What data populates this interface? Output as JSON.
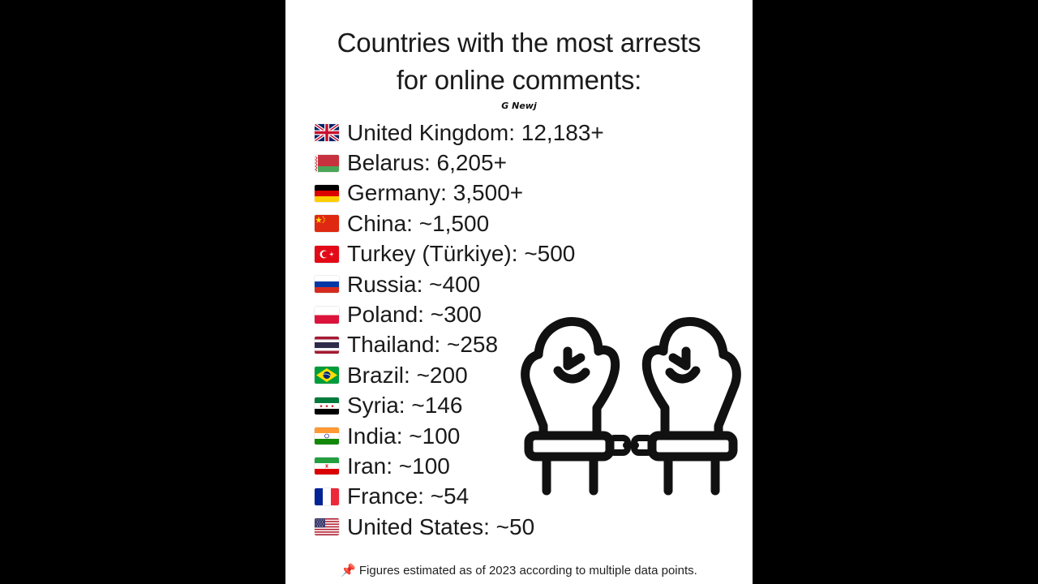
{
  "title_lines": [
    "Countries with the most arrests",
    "for online comments:"
  ],
  "credit": "G Newj",
  "countries": [
    {
      "flag": "gb-flag-icon",
      "text": "United Kingdom: 12,183+"
    },
    {
      "flag": "by-flag-icon",
      "text": "Belarus: 6,205+"
    },
    {
      "flag": "de-flag-icon",
      "text": "Germany: 3,500+"
    },
    {
      "flag": "cn-flag-icon",
      "text": "China: ~1,500"
    },
    {
      "flag": "tr-flag-icon",
      "text": "Turkey (Türkiye): ~500"
    },
    {
      "flag": "ru-flag-icon",
      "text": "Russia: ~400"
    },
    {
      "flag": "pl-flag-icon",
      "text": "Poland: ~300"
    },
    {
      "flag": "th-flag-icon",
      "text": "Thailand: ~258"
    },
    {
      "flag": "br-flag-icon",
      "text": "Brazil: ~200"
    },
    {
      "flag": "sy-flag-icon",
      "text": "Syria: ~146"
    },
    {
      "flag": "in-flag-icon",
      "text": "India: ~100"
    },
    {
      "flag": "ir-flag-icon",
      "text": "Iran: ~100"
    },
    {
      "flag": "fr-flag-icon",
      "text": "France: ~54"
    },
    {
      "flag": "us-flag-icon",
      "text": "United States: ~50"
    }
  ],
  "illustration": "handcuffed-fists-icon",
  "footer": {
    "icon": "pushpin-icon",
    "text": "Figures estimated as of 2023 according to multiple data points."
  },
  "colors": {
    "background": "#000000",
    "card": "#ffffff",
    "text": "#1a1a1a"
  }
}
